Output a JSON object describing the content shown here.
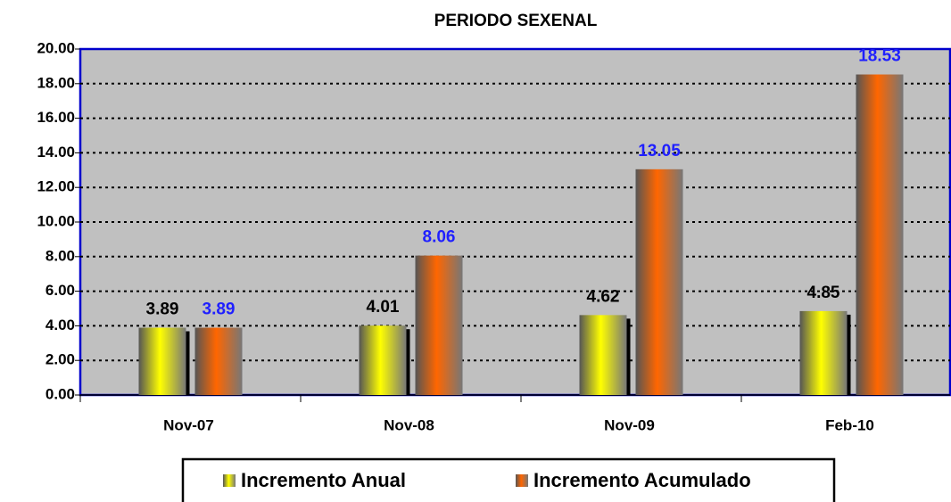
{
  "chart_data": {
    "type": "bar",
    "title": "PERIODO SEXENAL",
    "categories": [
      "Nov-07",
      "Nov-08",
      "Nov-09",
      "Feb-10"
    ],
    "series": [
      {
        "name": "Incremento Anual",
        "color": "#ffff00",
        "label_color": "#000000",
        "values": [
          3.89,
          4.01,
          4.62,
          4.85
        ]
      },
      {
        "name": "Incremento Acumulado",
        "color": "#ff6600",
        "label_color": "#1f1fff",
        "values": [
          3.89,
          8.06,
          13.05,
          18.53
        ]
      }
    ],
    "ylim": [
      0,
      20
    ],
    "yticks": [
      {
        "value": 0,
        "label": "0.00"
      },
      {
        "value": 2,
        "label": "2.00"
      },
      {
        "value": 4,
        "label": "4.00"
      },
      {
        "value": 6,
        "label": "6.00"
      },
      {
        "value": 8,
        "label": "8.00"
      },
      {
        "value": 10,
        "label": "10.00"
      },
      {
        "value": 12,
        "label": "12.00"
      },
      {
        "value": 14,
        "label": "14.00"
      },
      {
        "value": 16,
        "label": "16.00"
      },
      {
        "value": 18,
        "label": "18.00"
      },
      {
        "value": 20,
        "label": "20.00"
      }
    ],
    "grid": true,
    "plot_background": "#c0c0c0",
    "legend": "bottom"
  }
}
